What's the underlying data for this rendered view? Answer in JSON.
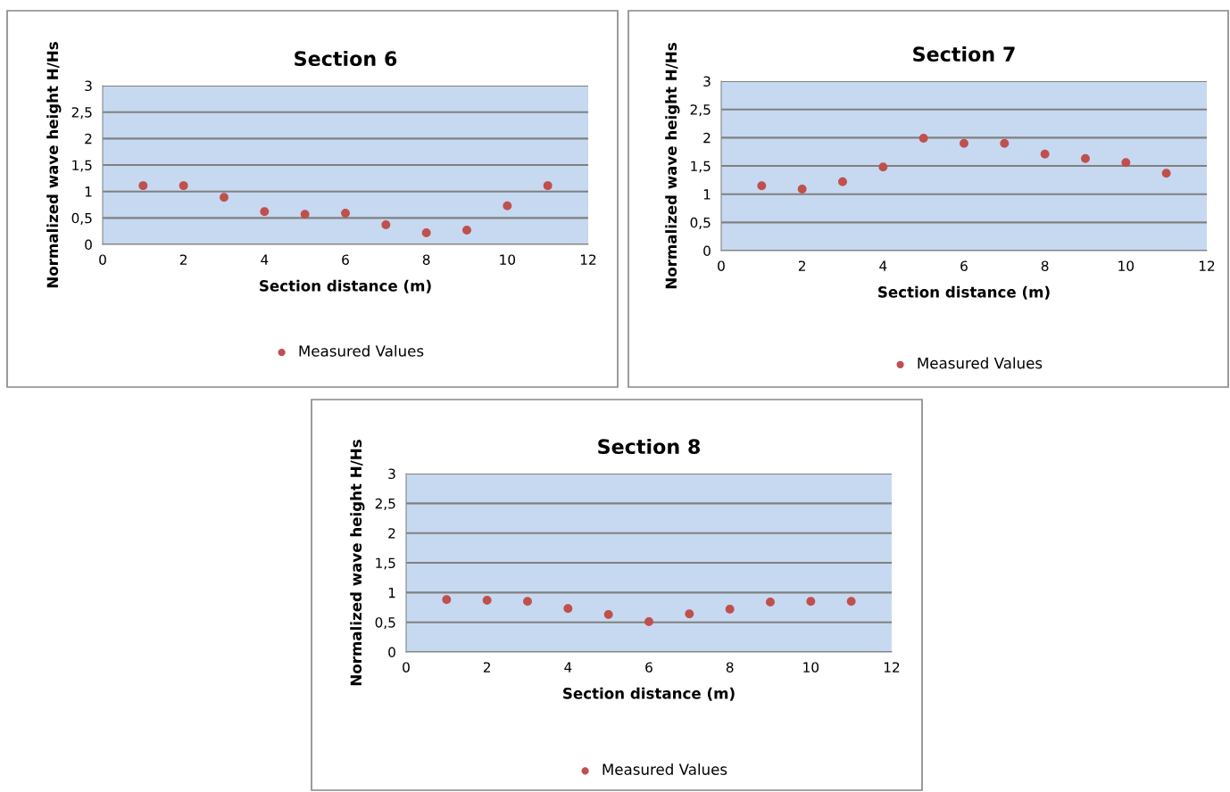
{
  "chart_data": [
    {
      "type": "scatter",
      "title": "Section 6",
      "xlabel": "Section distance (m)",
      "ylabel": "Normalized wave height H/Hs",
      "x": [
        1,
        2,
        3,
        4,
        5,
        6,
        7,
        8,
        9,
        10,
        11
      ],
      "series": [
        {
          "name": "Measured Values",
          "color": "#c0504d",
          "values": [
            1.11,
            1.11,
            0.89,
            0.62,
            0.57,
            0.59,
            0.37,
            0.22,
            0.27,
            0.73,
            1.11
          ]
        }
      ],
      "xlim": [
        0,
        12
      ],
      "xticks": [
        0,
        2,
        4,
        6,
        8,
        10,
        12
      ],
      "ylim": [
        0,
        3
      ],
      "yticks": [
        0,
        {
          "value": 0.5,
          "label": "0,5"
        },
        1,
        {
          "value": 1.5,
          "label": "1,5"
        },
        2,
        {
          "value": 2.5,
          "label": "2,5"
        },
        3
      ],
      "grid": "y",
      "legend": "bottom",
      "marker": "circle"
    },
    {
      "type": "scatter",
      "title": "Section 7",
      "xlabel": "Section distance (m)",
      "ylabel": "Normalized wave height H/Hs",
      "x": [
        1,
        2,
        3,
        4,
        5,
        6,
        7,
        8,
        9,
        10,
        11
      ],
      "series": [
        {
          "name": "Measured Values",
          "color": "#c0504d",
          "values": [
            1.15,
            1.09,
            1.22,
            1.48,
            1.99,
            1.9,
            1.9,
            1.71,
            1.63,
            1.56,
            1.37
          ]
        }
      ],
      "xlim": [
        0,
        12
      ],
      "xticks": [
        0,
        2,
        4,
        6,
        8,
        10,
        12
      ],
      "ylim": [
        0,
        3
      ],
      "yticks": [
        0,
        {
          "value": 0.5,
          "label": "0,5"
        },
        1,
        {
          "value": 1.5,
          "label": "1,5"
        },
        2,
        {
          "value": 2.5,
          "label": "2,5"
        },
        3
      ],
      "grid": "y",
      "legend": "bottom",
      "marker": "circle"
    },
    {
      "type": "scatter",
      "title": "Section 8",
      "xlabel": "Section distance (m)",
      "ylabel": "Normalized wave height H/Hs",
      "x": [
        1,
        2,
        3,
        4,
        5,
        6,
        7,
        8,
        9,
        10,
        11
      ],
      "series": [
        {
          "name": "Measured Values",
          "color": "#c0504d",
          "values": [
            0.88,
            0.87,
            0.85,
            0.73,
            0.63,
            0.51,
            0.64,
            0.72,
            0.84,
            0.85,
            0.85
          ]
        }
      ],
      "xlim": [
        0,
        12
      ],
      "xticks": [
        0,
        2,
        4,
        6,
        8,
        10,
        12
      ],
      "ylim": [
        0,
        3
      ],
      "yticks": [
        0,
        {
          "value": 0.5,
          "label": "0,5"
        },
        1,
        {
          "value": 1.5,
          "label": "1,5"
        },
        2,
        {
          "value": 2.5,
          "label": "2,5"
        },
        3
      ],
      "grid": "y",
      "legend": "bottom",
      "marker": "circle"
    }
  ]
}
